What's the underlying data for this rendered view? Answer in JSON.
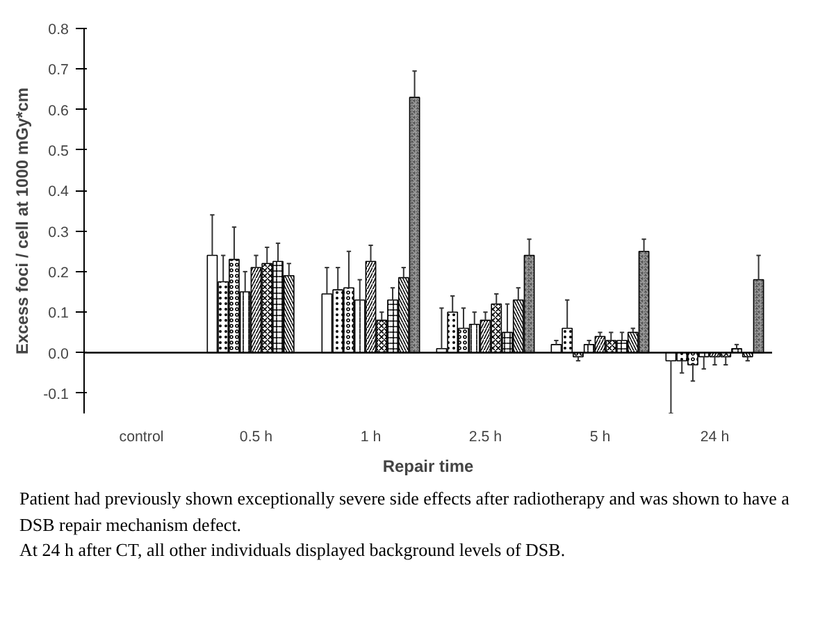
{
  "chart_data": {
    "type": "bar",
    "xlabel": "Repair time",
    "ylabel": "Excess foci / cell at 1000 mGy*cm",
    "categories": [
      "control",
      "0.5 h",
      "1 h",
      "2.5 h",
      "5 h",
      "24 h"
    ],
    "ylim": [
      -0.15,
      0.8
    ],
    "yticks": [
      {
        "value": -0.1,
        "label": "-0.1"
      },
      {
        "value": 0,
        "label": "0.0"
      },
      {
        "value": 0.1,
        "label": "0.1"
      },
      {
        "value": 0.2,
        "label": "0.2"
      },
      {
        "value": 0.3,
        "label": "0.3"
      },
      {
        "value": 0.4,
        "label": "0.4"
      },
      {
        "value": 0.5,
        "label": "0.5"
      },
      {
        "value": 0.6,
        "label": "0.6"
      },
      {
        "value": 0.7,
        "label": "0.7"
      },
      {
        "value": 0.8,
        "label": "0.8"
      }
    ],
    "grid": false,
    "ref_lines": [
      {
        "axis": "y",
        "value": 0,
        "color": "#000000"
      }
    ],
    "series": [
      {
        "color": "#ffffff",
        "values": [
          null,
          0.24,
          0.145,
          0.01,
          0.02,
          -0.02
        ],
        "errors": [
          null,
          [
            0.24,
            0.34
          ],
          [
            0.145,
            0.21
          ],
          [
            0.01,
            0.11
          ],
          [
            0.02,
            0.03
          ],
          [
            -0.02,
            -0.15
          ]
        ]
      },
      {
        "color": "#ffffff",
        "values": [
          null,
          0.175,
          0.155,
          0.1,
          0.06,
          -0.02
        ],
        "errors": [
          null,
          [
            0.175,
            0.24
          ],
          [
            0.155,
            0.21
          ],
          [
            0.1,
            0.14
          ],
          [
            0.06,
            0.13
          ],
          [
            -0.02,
            -0.05
          ]
        ]
      },
      {
        "color": "#ffffff",
        "values": [
          null,
          0.23,
          0.16,
          0.06,
          -0.01,
          -0.03
        ],
        "errors": [
          null,
          [
            0.23,
            0.31
          ],
          [
            0.16,
            0.25
          ],
          [
            0.06,
            0.11
          ],
          [
            -0.01,
            -0.02
          ],
          [
            -0.03,
            -0.07
          ]
        ]
      },
      {
        "color": "#ffffff",
        "values": [
          null,
          0.15,
          0.13,
          0.07,
          0.02,
          -0.01
        ],
        "errors": [
          null,
          [
            0.15,
            0.2
          ],
          [
            0.13,
            0.18
          ],
          [
            0.07,
            0.1
          ],
          [
            0.02,
            0.03
          ],
          [
            -0.01,
            -0.04
          ]
        ]
      },
      {
        "color": "#ffffff",
        "values": [
          null,
          0.21,
          0.225,
          0.08,
          0.04,
          -0.01
        ],
        "errors": [
          null,
          [
            0.21,
            0.24
          ],
          [
            0.225,
            0.265
          ],
          [
            0.08,
            0.1
          ],
          [
            0.04,
            0.05
          ],
          [
            -0.01,
            -0.03
          ]
        ]
      },
      {
        "color": "#ffffff",
        "values": [
          null,
          0.22,
          0.08,
          0.12,
          0.03,
          -0.01
        ],
        "errors": [
          null,
          [
            0.22,
            0.26
          ],
          [
            0.08,
            0.1
          ],
          [
            0.12,
            0.145
          ],
          [
            0.03,
            0.05
          ],
          [
            -0.01,
            -0.03
          ]
        ]
      },
      {
        "color": "#ffffff",
        "values": [
          null,
          0.225,
          0.13,
          0.05,
          0.03,
          0.01
        ],
        "errors": [
          null,
          [
            0.225,
            0.27
          ],
          [
            0.13,
            0.16
          ],
          [
            0.05,
            0.12
          ],
          [
            0.03,
            0.05
          ],
          [
            0.01,
            0.02
          ]
        ]
      },
      {
        "color": "#ffffff",
        "values": [
          null,
          0.19,
          0.185,
          0.13,
          0.05,
          -0.01
        ],
        "errors": [
          null,
          [
            0.19,
            0.22
          ],
          [
            0.185,
            0.21
          ],
          [
            0.13,
            0.16
          ],
          [
            0.05,
            0.06
          ],
          [
            -0.01,
            -0.02
          ]
        ]
      },
      {
        "color": "#555555",
        "values": [
          null,
          null,
          0.63,
          0.24,
          0.25,
          0.18
        ],
        "errors": [
          null,
          null,
          [
            0.63,
            0.695
          ],
          [
            0.24,
            0.28
          ],
          [
            0.25,
            0.28
          ],
          [
            0.18,
            0.24
          ]
        ]
      }
    ],
    "annotations": [
      "Patient had previously shown exceptionally severe side effects after radiotherapy and was shown to have a DSB repair mechanism defect.",
      "At 24 h after CT, all other individuals displayed background levels of DSB."
    ]
  }
}
